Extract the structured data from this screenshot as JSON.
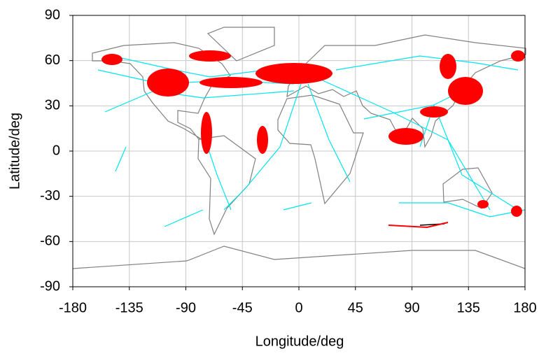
{
  "chart_data": {
    "type": "map",
    "xlabel": "Longitude/deg",
    "ylabel": "Latitude/deg",
    "xlim": [
      -180,
      180
    ],
    "xticks": [
      -180,
      -135,
      -90,
      -45,
      0,
      45,
      90,
      135,
      180
    ],
    "ylim": [
      -90,
      90
    ],
    "yticks": [
      -90,
      -60,
      -30,
      0,
      30,
      60,
      90
    ],
    "grid": true
  }
}
